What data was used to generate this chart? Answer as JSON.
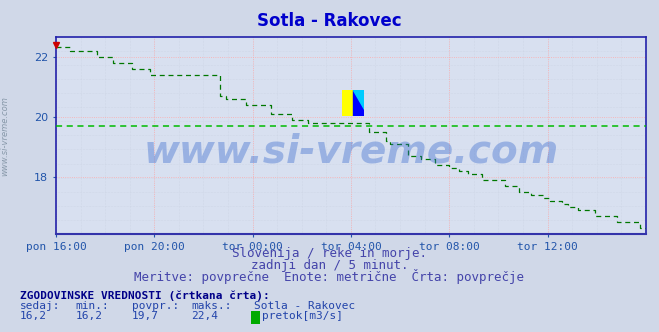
{
  "title": "Sotla - Rakovec",
  "title_color": "#0000cc",
  "title_fontsize": 12,
  "bg_color": "#d0d8e8",
  "plot_bg_color": "#d8e0f0",
  "grid_color_red": "#ffaaaa",
  "grid_color_light": "#c8d0e0",
  "axis_color": "#0000bb",
  "spine_color": "#2222aa",
  "tick_color": "#2255aa",
  "tick_fontsize": 8,
  "x_tick_labels": [
    "pon 16:00",
    "pon 20:00",
    "tor 00:00",
    "tor 04:00",
    "tor 08:00",
    "tor 12:00"
  ],
  "x_tick_positions": [
    0,
    48,
    96,
    144,
    192,
    240
  ],
  "y_ticks": [
    18,
    20,
    22
  ],
  "ylim_min": 16.1,
  "ylim_max": 22.7,
  "xlim_min": 0,
  "xlim_max": 288,
  "avg_line": 19.7,
  "avg_color": "#00bb00",
  "line_color": "#007700",
  "line_width": 1.0,
  "watermark": "www.si-vreme.com",
  "watermark_color": "#3366cc",
  "watermark_alpha": 0.38,
  "watermark_fontsize": 28,
  "subtitle1": "Slovenija / reke in morje.",
  "subtitle2": "zadnji dan / 5 minut.",
  "subtitle3": "Meritve: povprečne  Enote: metrične  Črta: povprečje",
  "subtitle_color": "#4444aa",
  "subtitle_fontsize": 9,
  "legend_title": "ZGODOVINSKE VREDNOSTI (črtkana črta):",
  "legend_col1_lbl": "sedaj:",
  "legend_col2_lbl": "min.:",
  "legend_col3_lbl": "povpr.:",
  "legend_col4_lbl": "maks.:",
  "legend_col5_lbl": "Sotla - Rakovec",
  "legend_col1_val": "16,2",
  "legend_col2_val": "16,2",
  "legend_col3_val": "19,7",
  "legend_col4_val": "22,4",
  "legend_unit": "pretok[m3/s]",
  "legend_color_bold": "#000088",
  "legend_color_val": "#2244aa",
  "legend_fontsize": 8,
  "side_label": "www.si-vreme.com",
  "side_label_color": "#8899aa",
  "side_label_fontsize": 6,
  "arrow_color": "#cc0000",
  "marker_color": "#cc0000",
  "n_points": 289,
  "logo_yellow": "#ffff00",
  "logo_blue": "#0000ff",
  "logo_cyan": "#00ccff"
}
